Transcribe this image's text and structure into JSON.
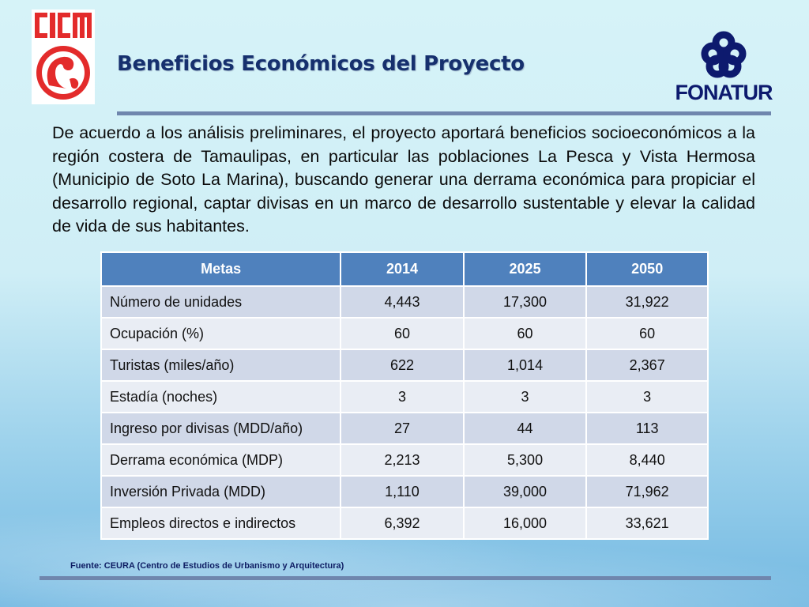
{
  "header": {
    "title": "Beneficios Económicos del Proyecto",
    "logo_left": "CICM",
    "logo_right": "FONATUR"
  },
  "intro": {
    "text": "De acuerdo a los análisis preliminares, el proyecto aportará beneficios socioeconómicos a la región costera de Tamaulipas, en particular las poblaciones La Pesca y Vista Hermosa (Municipio de Soto La Marina), buscando generar una derrama económica para propiciar el desarrollo regional, captar divisas en un marco de desarrollo sustentable y elevar la calidad de vida de sus habitantes."
  },
  "table": {
    "headers": [
      "Metas",
      "2014",
      "2025",
      "2050"
    ],
    "rows": [
      [
        "Número de unidades",
        "4,443",
        "17,300",
        "31,922"
      ],
      [
        "Ocupación (%)",
        "60",
        "60",
        "60"
      ],
      [
        "Turistas (miles/año)",
        "622",
        "1,014",
        "2,367"
      ],
      [
        "Estadía (noches)",
        "3",
        "3",
        "3"
      ],
      [
        "Ingreso por divisas (MDD/año)",
        "27",
        "44",
        "113"
      ],
      [
        "Derrama económica (MDP)",
        "2,213",
        "5,300",
        "8,440"
      ],
      [
        "Inversión Privada (MDD)",
        "1,110",
        "39,000",
        "71,962"
      ],
      [
        "Empleos directos e indirectos",
        "6,392",
        "16,000",
        "33,621"
      ]
    ]
  },
  "footer": {
    "source": "Fuente: CEURA (Centro de Estudios de Urbanismo y Arquitectura)"
  },
  "colors": {
    "title": "#16306e",
    "header_fill": "#4f81bd",
    "row_odd": "#d0d8e8",
    "row_even": "#e9edf4",
    "rule": "#6f86ad",
    "logo_red": "#e32b2b",
    "logo_navy": "#0d1a6e"
  }
}
